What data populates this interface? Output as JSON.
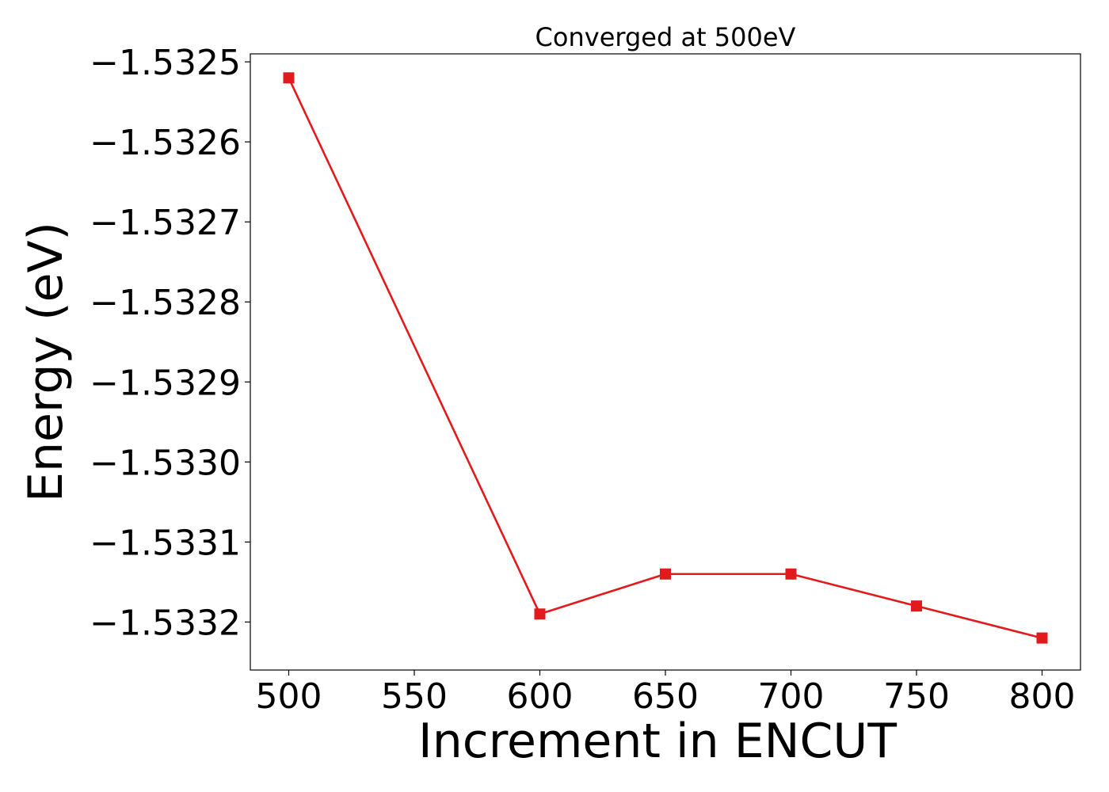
{
  "chart_data": {
    "type": "line",
    "title": "Converged at 500eV",
    "xlabel": "Increment in ENCUT",
    "ylabel": "Energy (eV)",
    "x": [
      500,
      600,
      650,
      700,
      750,
      800
    ],
    "series": [
      {
        "values": [
          -1.53252,
          -1.53319,
          -1.53314,
          -1.53314,
          -1.53318,
          -1.53322
        ],
        "color": "#e31a1c",
        "marker": "square"
      }
    ],
    "xticks": [
      500,
      550,
      600,
      650,
      700,
      750,
      800
    ],
    "xtick_labels": [
      "500",
      "550",
      "600",
      "650",
      "700",
      "750",
      "800"
    ],
    "yticks": [
      -1.5325,
      -1.5326,
      -1.5327,
      -1.5328,
      -1.5329,
      -1.533,
      -1.5331,
      -1.5332
    ],
    "ytick_labels": [
      "−1.5325",
      "−1.5326",
      "−1.5327",
      "−1.5328",
      "−1.5329",
      "−1.5330",
      "−1.5331",
      "−1.5332"
    ],
    "xlim": [
      484.7,
      815.3
    ],
    "ylim": [
      -1.53326,
      -1.53249
    ],
    "grid": false,
    "legend": "none"
  }
}
